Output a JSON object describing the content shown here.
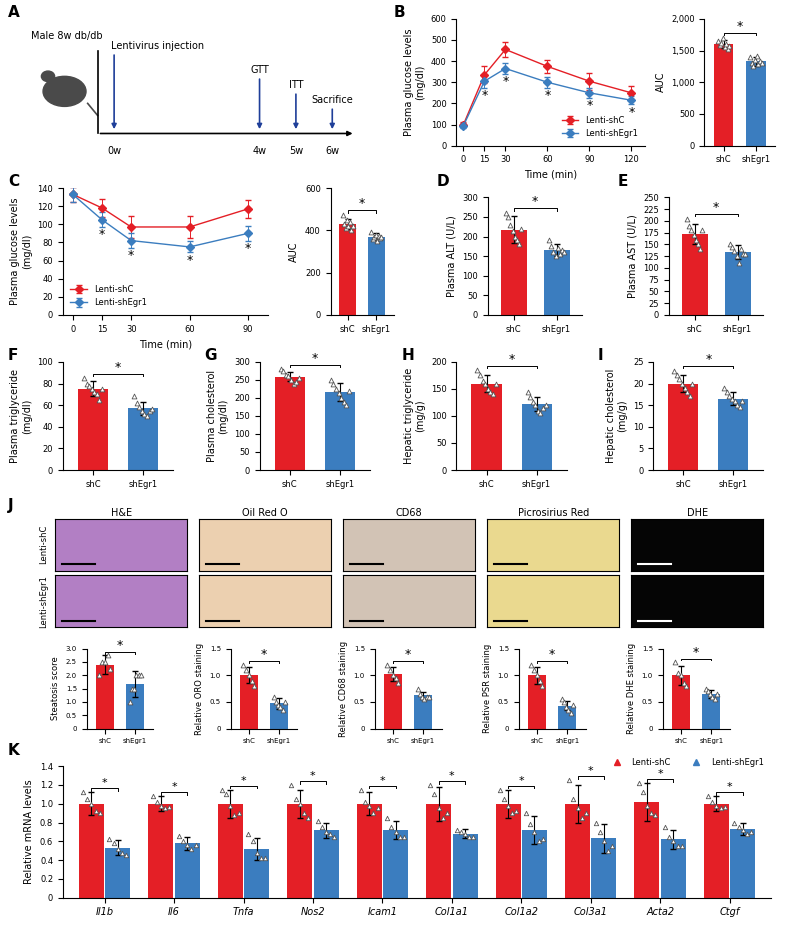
{
  "schematic": {
    "panel": "A",
    "subject": "Male 8w db/db",
    "events": [
      {
        "week": 0,
        "label": "Lentivirus injection",
        "time_label": "0w"
      },
      {
        "week": 4,
        "label": "GTT",
        "time_label": "4w"
      },
      {
        "week": 5,
        "label": "ITT",
        "time_label": "5w"
      },
      {
        "week": 6,
        "label": "Sacrifice",
        "time_label": "6w"
      }
    ]
  },
  "micrographs": {
    "panel": "J",
    "columns": [
      "H&E",
      "Oil Red O",
      "CD68",
      "Picrosirius Red",
      "DHE"
    ],
    "rows": [
      "Lenti-shC",
      "Lenti-shEgr1"
    ]
  },
  "chart_data": [
    {
      "panel": "B",
      "type": "line",
      "xlabel": "Time (min)",
      "ylabel": "Plasma glucose levels\n(mg/dl)",
      "x": [
        0,
        15,
        30,
        60,
        90,
        120
      ],
      "xlim": [
        -5,
        130
      ],
      "xticks": [
        0,
        15,
        30,
        60,
        90,
        120
      ],
      "ylim": [
        0,
        600
      ],
      "yticks": [
        0,
        100,
        200,
        300,
        400,
        500,
        600
      ],
      "legend": "lower right",
      "series": [
        {
          "name": "Lenti-shC",
          "color": "#e41f26",
          "marker": "diamond",
          "values": [
            100,
            335,
            455,
            375,
            305,
            250
          ],
          "errors": [
            10,
            40,
            35,
            30,
            40,
            30
          ]
        },
        {
          "name": "Lenti-shEgr1",
          "color": "#3b7dbf",
          "marker": "diamond",
          "values": [
            95,
            305,
            365,
            300,
            250,
            215
          ],
          "errors": [
            10,
            30,
            25,
            25,
            25,
            20
          ]
        }
      ],
      "significance": {
        "label": "*",
        "x": [
          15,
          30,
          60,
          90,
          120
        ]
      }
    },
    {
      "type": "bar",
      "ylabel": "AUC",
      "categories": [
        "shC",
        "shEgr1"
      ],
      "values": [
        1600,
        1330
      ],
      "errors": [
        60,
        70
      ],
      "colors": [
        "#e41f26",
        "#3b7dbf"
      ],
      "marker": "triangle",
      "points": [
        [
          1650,
          1580,
          1620,
          1700,
          1550,
          1600,
          1530,
          1570
        ],
        [
          1400,
          1300,
          1250,
          1350,
          1420,
          1280,
          1330,
          1310
        ]
      ],
      "ylim": [
        0,
        2000
      ],
      "yticks": [
        0,
        500,
        {
          "value": 1000,
          "label": "1,000"
        },
        {
          "value": 1500,
          "label": "1,500"
        },
        {
          "value": 2000,
          "label": "2,000"
        }
      ],
      "significance": "*"
    },
    {
      "panel": "C",
      "type": "line",
      "xlabel": "Time (min)",
      "ylabel": "Plasma glucose levels\n(mg/dl)",
      "x": [
        0,
        15,
        30,
        60,
        90
      ],
      "xlim": [
        -5,
        100
      ],
      "xticks": [
        0,
        15,
        30,
        60,
        90
      ],
      "ylim": [
        0,
        140
      ],
      "yticks": [
        0,
        20,
        40,
        60,
        80,
        100,
        120,
        140
      ],
      "legend": "lower left",
      "series": [
        {
          "name": "Lenti-shC",
          "color": "#e41f26",
          "marker": "diamond",
          "values": [
            133,
            118,
            97,
            97,
            117
          ],
          "errors": [
            8,
            10,
            12,
            12,
            10
          ]
        },
        {
          "name": "Lenti-shEgr1",
          "color": "#3b7dbf",
          "marker": "diamond",
          "values": [
            133,
            105,
            82,
            75,
            90
          ],
          "errors": [
            8,
            8,
            8,
            6,
            8
          ]
        }
      ],
      "significance": {
        "label": "*",
        "x": [
          15,
          30,
          60,
          90
        ]
      }
    },
    {
      "type": "bar",
      "ylabel": "AUC",
      "categories": [
        "shC",
        "shEgr1"
      ],
      "values": [
        430,
        370
      ],
      "errors": [
        25,
        15
      ],
      "colors": [
        "#e41f26",
        "#3b7dbf"
      ],
      "marker": "triangle",
      "points": [
        [
          470,
          430,
          410,
          450,
          420,
          440,
          400,
          420
        ],
        [
          390,
          360,
          370,
          380,
          350,
          375,
          365,
          370
        ]
      ],
      "ylim": [
        0,
        600
      ],
      "yticks": [
        0,
        200,
        400,
        600
      ],
      "significance": "*"
    },
    {
      "panel": "D",
      "type": "bar",
      "ylabel": "Plasma ALT (U/L)",
      "categories": [
        "shC",
        "shEgr1"
      ],
      "values": [
        218,
        165
      ],
      "errors": [
        35,
        15
      ],
      "colors": [
        "#e41f26",
        "#3b7dbf"
      ],
      "marker": "triangle",
      "points": [
        [
          260,
          250,
          230,
          215,
          200,
          190,
          180,
          220
        ],
        [
          190,
          175,
          160,
          150,
          170,
          155,
          165,
          160
        ]
      ],
      "ylim": [
        0,
        300
      ],
      "yticks": [
        0,
        50,
        100,
        150,
        200,
        250,
        300
      ],
      "significance": "*"
    },
    {
      "panel": "E",
      "type": "bar",
      "ylabel": "Plasma AST (U/L)",
      "categories": [
        "shC",
        "shEgr1"
      ],
      "values": [
        172,
        133
      ],
      "errors": [
        22,
        15
      ],
      "colors": [
        "#e41f26",
        "#3b7dbf"
      ],
      "marker": "triangle",
      "points": [
        [
          205,
          190,
          180,
          170,
          160,
          150,
          140,
          180
        ],
        [
          150,
          145,
          135,
          125,
          110,
          140,
          130,
          130
        ]
      ],
      "ylim": [
        0,
        250
      ],
      "yticks": [
        0,
        25,
        50,
        75,
        100,
        125,
        150,
        175,
        200,
        225,
        250
      ],
      "significance": "*"
    },
    {
      "panel": "F",
      "type": "bar",
      "ylabel": "Plasma triglyceride\n(mg/dl)",
      "categories": [
        "shC",
        "shEgr1"
      ],
      "values": [
        75,
        57
      ],
      "errors": [
        7,
        6
      ],
      "colors": [
        "#e41f26",
        "#3b7dbf"
      ],
      "marker": "triangle",
      "points": [
        [
          85,
          80,
          78,
          75,
          72,
          70,
          65,
          75
        ],
        [
          68,
          62,
          58,
          55,
          52,
          50,
          55,
          56
        ]
      ],
      "ylim": [
        0,
        100
      ],
      "yticks": [
        0,
        20,
        40,
        60,
        80,
        100
      ],
      "significance": "*"
    },
    {
      "panel": "G",
      "type": "bar",
      "ylabel": "Plasma cholesterol\n(mg/dl)",
      "categories": [
        "shC",
        "shEgr1"
      ],
      "values": [
        259,
        216
      ],
      "errors": [
        12,
        25
      ],
      "colors": [
        "#e41f26",
        "#3b7dbf"
      ],
      "marker": "triangle",
      "points": [
        [
          280,
          275,
          265,
          260,
          250,
          240,
          245,
          255
        ],
        [
          250,
          240,
          225,
          215,
          200,
          190,
          180,
          220
        ]
      ],
      "ylim": [
        0,
        300
      ],
      "yticks": [
        0,
        50,
        100,
        150,
        200,
        250,
        300
      ],
      "significance": "*"
    },
    {
      "panel": "H",
      "type": "bar",
      "ylabel": "Hepatic triglyceride\n(mg/g)",
      "categories": [
        "shC",
        "shEgr1"
      ],
      "values": [
        160,
        122
      ],
      "errors": [
        15,
        13
      ],
      "colors": [
        "#e41f26",
        "#3b7dbf"
      ],
      "marker": "triangle",
      "points": [
        [
          185,
          175,
          165,
          160,
          150,
          145,
          140,
          160
        ],
        [
          145,
          135,
          125,
          120,
          110,
          105,
          115,
          120
        ]
      ],
      "ylim": [
        0,
        200
      ],
      "yticks": [
        0,
        50,
        100,
        150,
        200
      ],
      "significance": "*"
    },
    {
      "panel": "I",
      "type": "bar",
      "ylabel": "Hepatic cholesterol\n(mg/g)",
      "categories": [
        "shC",
        "shEgr1"
      ],
      "values": [
        20,
        16.5
      ],
      "errors": [
        2,
        1.5
      ],
      "colors": [
        "#e41f26",
        "#3b7dbf"
      ],
      "marker": "triangle",
      "points": [
        [
          23,
          22,
          21,
          20,
          19,
          18,
          17,
          20
        ],
        [
          19,
          18,
          17,
          16.5,
          16,
          15,
          14.5,
          16
        ]
      ],
      "ylim": [
        0,
        25
      ],
      "yticks": [
        0,
        5,
        10,
        15,
        20,
        25
      ],
      "significance": "*"
    },
    {
      "type": "bar",
      "ylabel": "Steatosis score",
      "categories": [
        "shC",
        "shEgr1"
      ],
      "values": [
        2.4,
        1.67
      ],
      "errors": [
        0.35,
        0.5
      ],
      "colors": [
        "#e41f26",
        "#3b7dbf"
      ],
      "marker": "triangle",
      "points": [
        [
          2,
          2.5,
          2.5,
          2.75,
          2.25
        ],
        [
          1,
          1.5,
          1.5,
          2,
          2,
          2
        ]
      ],
      "ylim": [
        0,
        3
      ],
      "yticks": [
        0,
        0.5,
        {
          "value": 1,
          "label": "1.0"
        },
        1.5,
        {
          "value": 2,
          "label": "2.0"
        },
        2.5,
        {
          "value": 3,
          "label": "3.0"
        }
      ],
      "significance": "*"
    },
    {
      "type": "bar",
      "ylabel": "Relative ORO staining",
      "categories": [
        "shC",
        "shEgr1"
      ],
      "values": [
        1.0,
        0.47
      ],
      "errors": [
        0.15,
        0.1
      ],
      "colors": [
        "#e41f26",
        "#3b7dbf"
      ],
      "marker": "triangle",
      "points": [
        [
          1.2,
          1.1,
          1.0,
          0.9,
          0.8
        ],
        [
          0.6,
          0.5,
          0.45,
          0.4,
          0.35,
          0.5
        ]
      ],
      "ylim": [
        0,
        1.5
      ],
      "yticks": [
        0,
        0.5,
        {
          "value": 1,
          "label": "1.0"
        },
        1.5
      ],
      "significance": "*"
    },
    {
      "type": "bar",
      "ylabel": "Relative CD68 staining",
      "categories": [
        "shC",
        "shEgr1"
      ],
      "values": [
        1.02,
        0.62
      ],
      "errors": [
        0.13,
        0.07
      ],
      "colors": [
        "#e41f26",
        "#3b7dbf"
      ],
      "marker": "triangle",
      "points": [
        [
          1.2,
          1.1,
          1.0,
          0.95,
          0.85
        ],
        [
          0.75,
          0.65,
          0.6,
          0.55,
          0.6,
          0.6
        ]
      ],
      "ylim": [
        0,
        1.5
      ],
      "yticks": [
        0,
        0.5,
        {
          "value": 1,
          "label": "1.0"
        },
        1.5
      ],
      "significance": "*"
    },
    {
      "type": "bar",
      "ylabel": "Relative PSR staining",
      "categories": [
        "shC",
        "shEgr1"
      ],
      "values": [
        1.0,
        0.43
      ],
      "errors": [
        0.16,
        0.09
      ],
      "colors": [
        "#e41f26",
        "#3b7dbf"
      ],
      "marker": "triangle",
      "points": [
        [
          1.2,
          1.1,
          1.0,
          0.9,
          0.8
        ],
        [
          0.55,
          0.5,
          0.4,
          0.35,
          0.3,
          0.45
        ]
      ],
      "ylim": [
        0,
        1.5
      ],
      "yticks": [
        0,
        0.5,
        {
          "value": 1,
          "label": "1.0"
        },
        1.5
      ],
      "significance": "*"
    },
    {
      "type": "bar",
      "ylabel": "Relative DHE staining",
      "categories": [
        "shC",
        "shEgr1"
      ],
      "values": [
        1.0,
        0.65
      ],
      "errors": [
        0.18,
        0.07
      ],
      "colors": [
        "#e41f26",
        "#3b7dbf"
      ],
      "marker": "triangle",
      "points": [
        [
          1.25,
          1.05,
          1.0,
          0.85,
          0.8
        ],
        [
          0.75,
          0.7,
          0.65,
          0.6,
          0.55,
          0.65
        ]
      ],
      "ylim": [
        0,
        1.5
      ],
      "yticks": [
        0,
        0.5,
        {
          "value": 1,
          "label": "1.0"
        },
        1.5
      ],
      "significance": "*"
    },
    {
      "panel": "K",
      "type": "bar",
      "ylabel": "Relative mRNA levels",
      "categories": [
        "Il1b",
        "Il6",
        "Tnfa",
        "Nos2",
        "Icam1",
        "Col1a1",
        "Col1a2",
        "Col3a1",
        "Acta2",
        "Ctgf"
      ],
      "ylim": [
        0,
        1.4
      ],
      "yticks": [
        0,
        0.2,
        0.4,
        0.6,
        0.8,
        {
          "value": 1,
          "label": "1.0"
        },
        1.2,
        1.4
      ],
      "legend": "upper right",
      "significance": "*",
      "series": [
        {
          "name": "Lenti-shC",
          "color": "#e41f26",
          "marker": "triangle",
          "values": [
            1.0,
            1.0,
            1.0,
            1.0,
            1.0,
            1.0,
            1.0,
            1.0,
            1.02,
            1.0
          ],
          "errors": [
            0.12,
            0.08,
            0.15,
            0.15,
            0.12,
            0.18,
            0.15,
            0.2,
            0.2,
            0.08
          ],
          "points": [
            [
              1.12,
              1.05,
              1.0,
              0.92,
              0.9
            ],
            [
              1.08,
              1.02,
              0.98,
              0.95,
              0.97
            ],
            [
              1.15,
              1.1,
              0.98,
              0.88,
              0.9
            ],
            [
              1.2,
              1.05,
              1.0,
              0.9,
              0.85
            ],
            [
              1.15,
              1.02,
              0.98,
              0.9,
              0.95
            ],
            [
              1.2,
              1.1,
              0.95,
              0.85,
              0.9
            ],
            [
              1.15,
              1.05,
              0.98,
              0.9,
              0.92
            ],
            [
              1.25,
              1.05,
              0.95,
              0.85,
              0.9
            ],
            [
              1.22,
              1.12,
              0.98,
              0.9,
              0.88
            ],
            [
              1.08,
              1.02,
              0.98,
              0.95,
              0.97
            ]
          ]
        },
        {
          "name": "Lenti-shEgr1",
          "color": "#3b7dbf",
          "marker": "triangle",
          "values": [
            0.53,
            0.58,
            0.52,
            0.72,
            0.72,
            0.68,
            0.72,
            0.63,
            0.62,
            0.73
          ],
          "errors": [
            0.08,
            0.07,
            0.12,
            0.08,
            0.1,
            0.05,
            0.15,
            0.15,
            0.1,
            0.06
          ],
          "points": [
            [
              0.62,
              0.58,
              0.52,
              0.48,
              0.45
            ],
            [
              0.66,
              0.6,
              0.56,
              0.52,
              0.56
            ],
            [
              0.68,
              0.6,
              0.48,
              0.42,
              0.42
            ],
            [
              0.82,
              0.75,
              0.7,
              0.68,
              0.65
            ],
            [
              0.85,
              0.75,
              0.7,
              0.65,
              0.65
            ],
            [
              0.72,
              0.7,
              0.68,
              0.65,
              0.65
            ],
            [
              0.9,
              0.78,
              0.7,
              0.6,
              0.62
            ],
            [
              0.8,
              0.7,
              0.6,
              0.5,
              0.55
            ],
            [
              0.75,
              0.65,
              0.6,
              0.55,
              0.55
            ],
            [
              0.8,
              0.75,
              0.72,
              0.68,
              0.7
            ]
          ]
        }
      ]
    }
  ]
}
